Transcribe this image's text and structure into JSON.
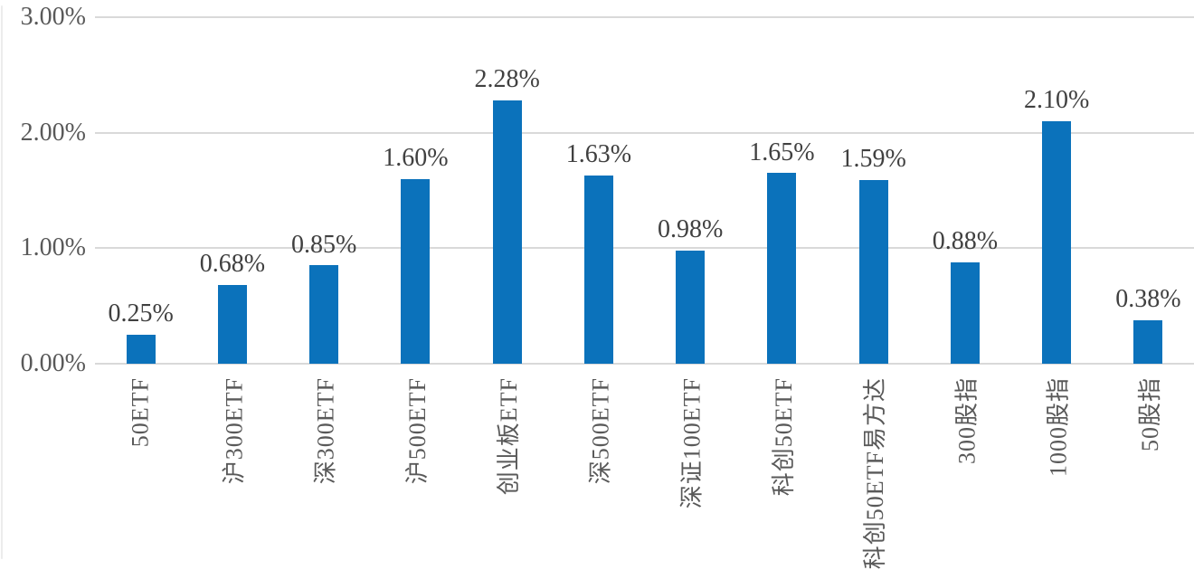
{
  "chart_data": {
    "type": "bar",
    "title": "",
    "xlabel": "",
    "ylabel": "",
    "categories": [
      "50ETF",
      "沪300ETF",
      "深300ETF",
      "沪500ETF",
      "创业板ETF",
      "深500ETF",
      "深证100ETF",
      "科创50ETF",
      "科创50ETF易方达",
      "300股指",
      "1000股指",
      "50股指"
    ],
    "values": [
      0.25,
      0.68,
      0.85,
      1.6,
      2.28,
      1.63,
      0.98,
      1.65,
      1.59,
      0.88,
      2.1,
      0.38
    ],
    "value_labels": [
      "0.25%",
      "0.68%",
      "0.85%",
      "1.60%",
      "2.28%",
      "1.63%",
      "0.98%",
      "1.65%",
      "1.59%",
      "0.88%",
      "2.10%",
      "0.38%"
    ],
    "y_ticks": [
      {
        "label": "3.00%",
        "value": 3.0
      },
      {
        "label": "2.00%",
        "value": 2.0
      },
      {
        "label": "1.00%",
        "value": 1.0
      },
      {
        "label": "0.00%",
        "value": 0.0
      }
    ],
    "ylim": [
      0,
      3
    ],
    "grid": "horizontal",
    "legend": "none",
    "colors": {
      "bar": "#0b72bb",
      "gridline": "#d9d9d9",
      "axis_text": "#595959",
      "value_text": "#404040"
    }
  }
}
